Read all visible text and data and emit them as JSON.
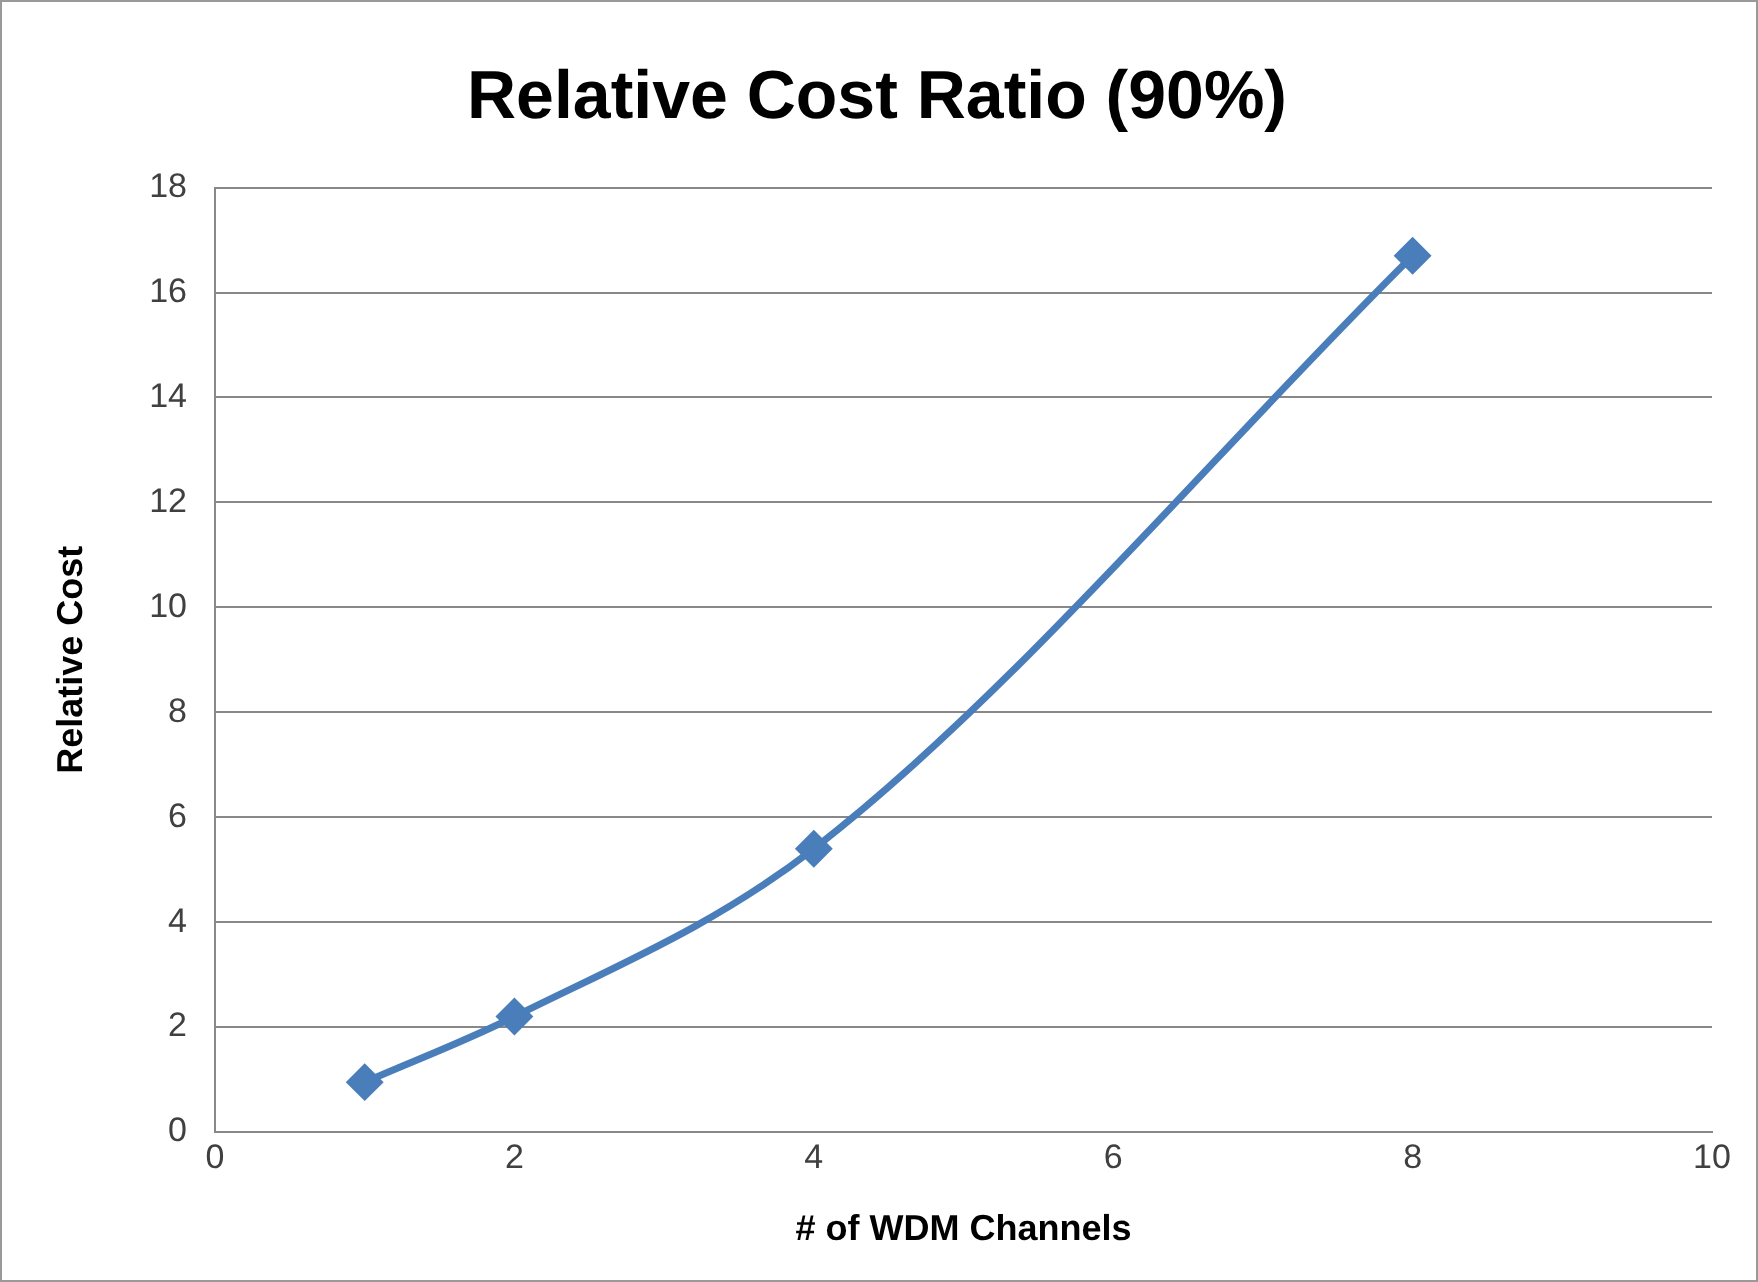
{
  "chart_data": {
    "type": "line",
    "title": "Relative Cost Ratio (90%)",
    "xlabel": "# of WDM Channels",
    "ylabel": "Relative Cost",
    "x": [
      1,
      2,
      4,
      8
    ],
    "series": [
      {
        "color": "#4a7ebb",
        "values": [
          0.95,
          2.2,
          5.4,
          16.7
        ]
      }
    ],
    "xlim": [
      0,
      10
    ],
    "xticks": [
      0,
      2,
      4,
      6,
      8,
      10
    ],
    "ylim": [
      0,
      18
    ],
    "yticks": [
      0,
      2,
      4,
      6,
      8,
      10,
      12,
      14,
      16,
      18
    ],
    "grid": "y",
    "legend": false,
    "marker": "diamond",
    "line_style": "solid"
  }
}
